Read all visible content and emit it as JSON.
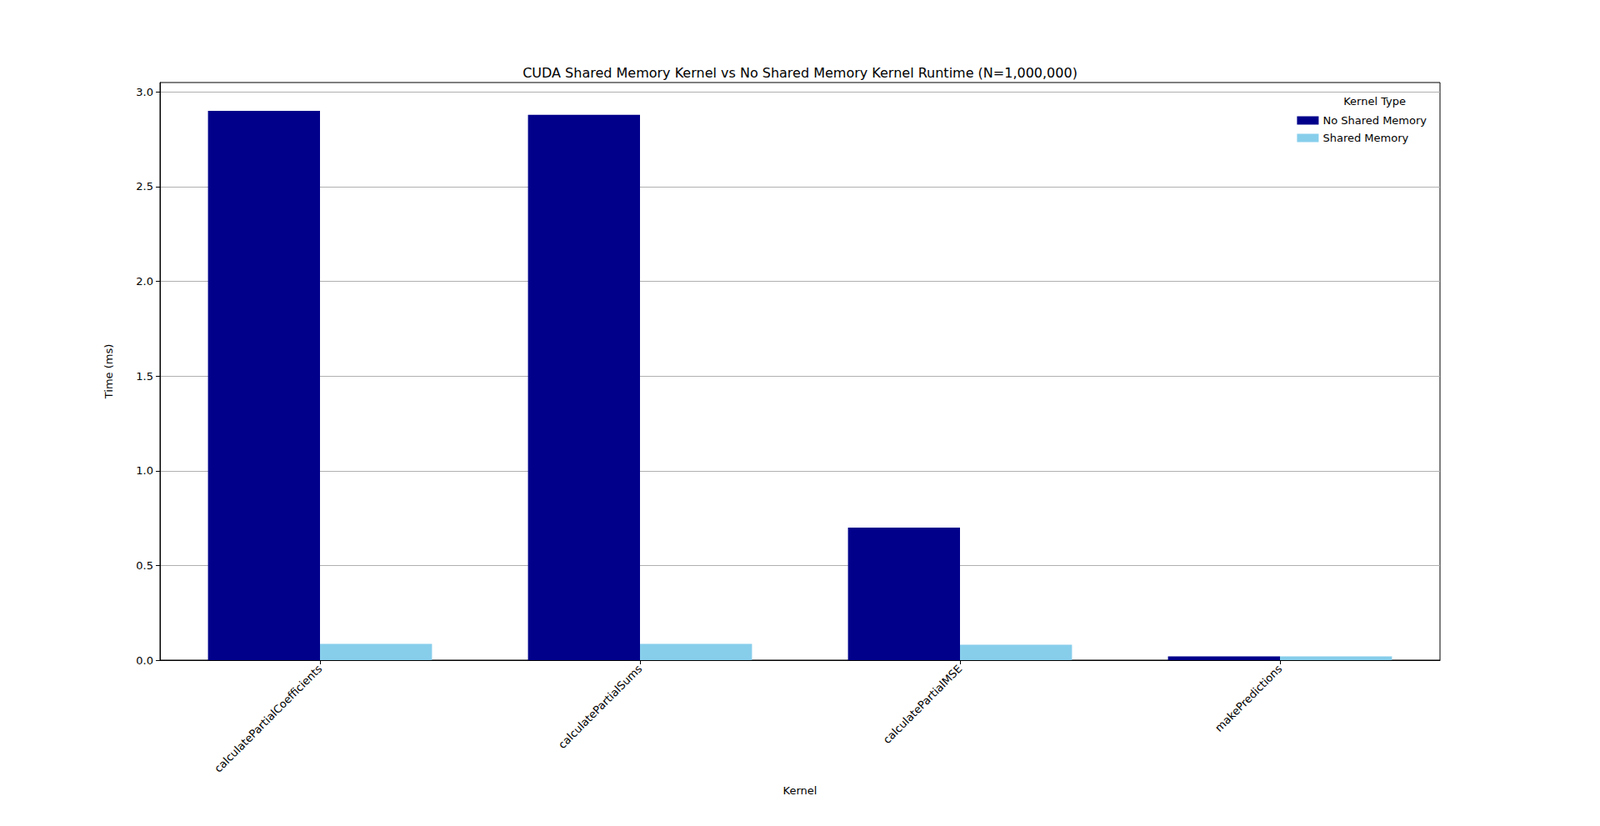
{
  "chart_data": {
    "type": "bar",
    "title": "CUDA Shared Memory Kernel vs No Shared Memory Kernel Runtime (N=1,000,000)",
    "x_label": "Kernel",
    "y_label": "Time (ms)",
    "legend_title": "Kernel Type",
    "categories": [
      "calculatePartialCoefficients",
      "calculatePartialSums",
      "calculatePartialMSE",
      "makePredictions"
    ],
    "series": [
      {
        "name": "No Shared Memory",
        "color": "#00008b",
        "values": [
          2.9,
          2.88,
          0.7,
          0.02
        ]
      },
      {
        "name": "Shared Memory",
        "color": "#87ceeb",
        "values": [
          0.086,
          0.086,
          0.081,
          0.02
        ]
      }
    ],
    "ylim": [
      0,
      3.05
    ],
    "yticks": [
      {
        "value": 0,
        "label": "0.0"
      },
      0.5,
      {
        "value": 1,
        "label": "1.0"
      },
      1.5,
      {
        "value": 2,
        "label": "2.0"
      },
      2.5,
      {
        "value": 3,
        "label": "3.0"
      }
    ],
    "grid": true,
    "legend": "upper right"
  }
}
